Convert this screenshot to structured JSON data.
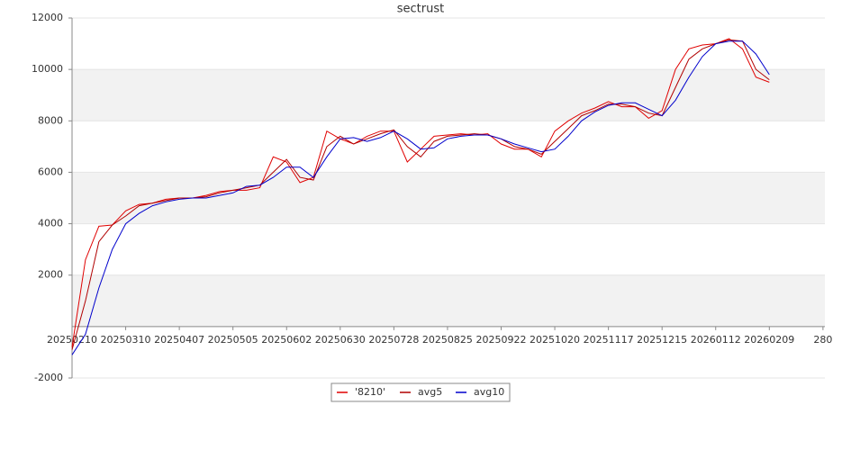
{
  "chart_data": {
    "type": "line",
    "title": "sectrust",
    "x": [
      "20250210",
      "20250217",
      "20250224",
      "20250303",
      "20250310",
      "20250317",
      "20250324",
      "20250331",
      "20250407",
      "20250414",
      "20250421",
      "20250428",
      "20250505",
      "20250512",
      "20250519",
      "20250526",
      "20250602",
      "20250609",
      "20250616",
      "20250623",
      "20250630",
      "20250707",
      "20250714",
      "20250721",
      "20250728",
      "20250804",
      "20250811",
      "20250818",
      "20250825",
      "20250901",
      "20250908",
      "20250915",
      "20250922",
      "20250929",
      "20251006",
      "20251013",
      "20251020",
      "20251027",
      "20251103",
      "20251110",
      "20251117",
      "20251124",
      "20251201",
      "20251208",
      "20251215",
      "20251222",
      "20251229",
      "20260105",
      "20260112",
      "20260119",
      "20260126",
      "20260202",
      "20260209"
    ],
    "series": [
      {
        "name": "'8210'",
        "color": "#e00000",
        "values": [
          -800,
          2600,
          3900,
          3950,
          4500,
          4750,
          4800,
          4950,
          5000,
          5000,
          5100,
          5250,
          5300,
          5300,
          5400,
          6600,
          6400,
          5600,
          5800,
          7600,
          7300,
          7100,
          7400,
          7600,
          7600,
          6400,
          6900,
          7400,
          7450,
          7500,
          7450,
          7500,
          7100,
          6900,
          6900,
          6600,
          7600,
          8000,
          8300,
          8500,
          8750,
          8550,
          8550,
          8100,
          8400,
          10000,
          10800,
          10950,
          11000,
          11200,
          10800,
          9700,
          9500
        ]
      },
      {
        "name": "avg5",
        "color": "#b00000",
        "values": [
          -900,
          1000,
          3300,
          3950,
          4300,
          4700,
          4800,
          4900,
          5000,
          5000,
          5050,
          5200,
          5300,
          5400,
          5500,
          6000,
          6500,
          5800,
          5700,
          7000,
          7400,
          7100,
          7300,
          7500,
          7650,
          7000,
          6600,
          7200,
          7400,
          7450,
          7500,
          7450,
          7300,
          7000,
          6900,
          6700,
          7200,
          7700,
          8200,
          8400,
          8650,
          8650,
          8550,
          8300,
          8200,
          9300,
          10400,
          10800,
          11000,
          11150,
          11100,
          10000,
          9600
        ]
      },
      {
        "name": "avg10",
        "color": "#0000cc",
        "values": [
          -1100,
          -300,
          1500,
          3000,
          4000,
          4400,
          4700,
          4850,
          4950,
          5000,
          5000,
          5100,
          5200,
          5450,
          5500,
          5800,
          6200,
          6200,
          5800,
          6600,
          7300,
          7350,
          7200,
          7350,
          7600,
          7300,
          6900,
          6950,
          7300,
          7400,
          7450,
          7450,
          7300,
          7100,
          6950,
          6800,
          6900,
          7400,
          8000,
          8350,
          8600,
          8700,
          8700,
          8450,
          8200,
          8800,
          9700,
          10500,
          11000,
          11100,
          11100,
          10600,
          9800
        ]
      }
    ],
    "xlim": [
      "20250210",
      "20260310"
    ],
    "xticks": [
      "20250210",
      "20250310",
      "20250407",
      "20250505",
      "20250602",
      "20250630",
      "20250728",
      "20250825",
      "20250922",
      "20251020",
      "20251117",
      "20251215",
      "20260112",
      "20260209",
      {
        "value": "20260309",
        "label": "280"
      }
    ],
    "ylim": [
      -2000,
      12000
    ],
    "yticks": [
      -2000,
      2000,
      4000,
      6000,
      8000,
      10000,
      12000
    ],
    "grid": true,
    "legend": "bottom"
  }
}
